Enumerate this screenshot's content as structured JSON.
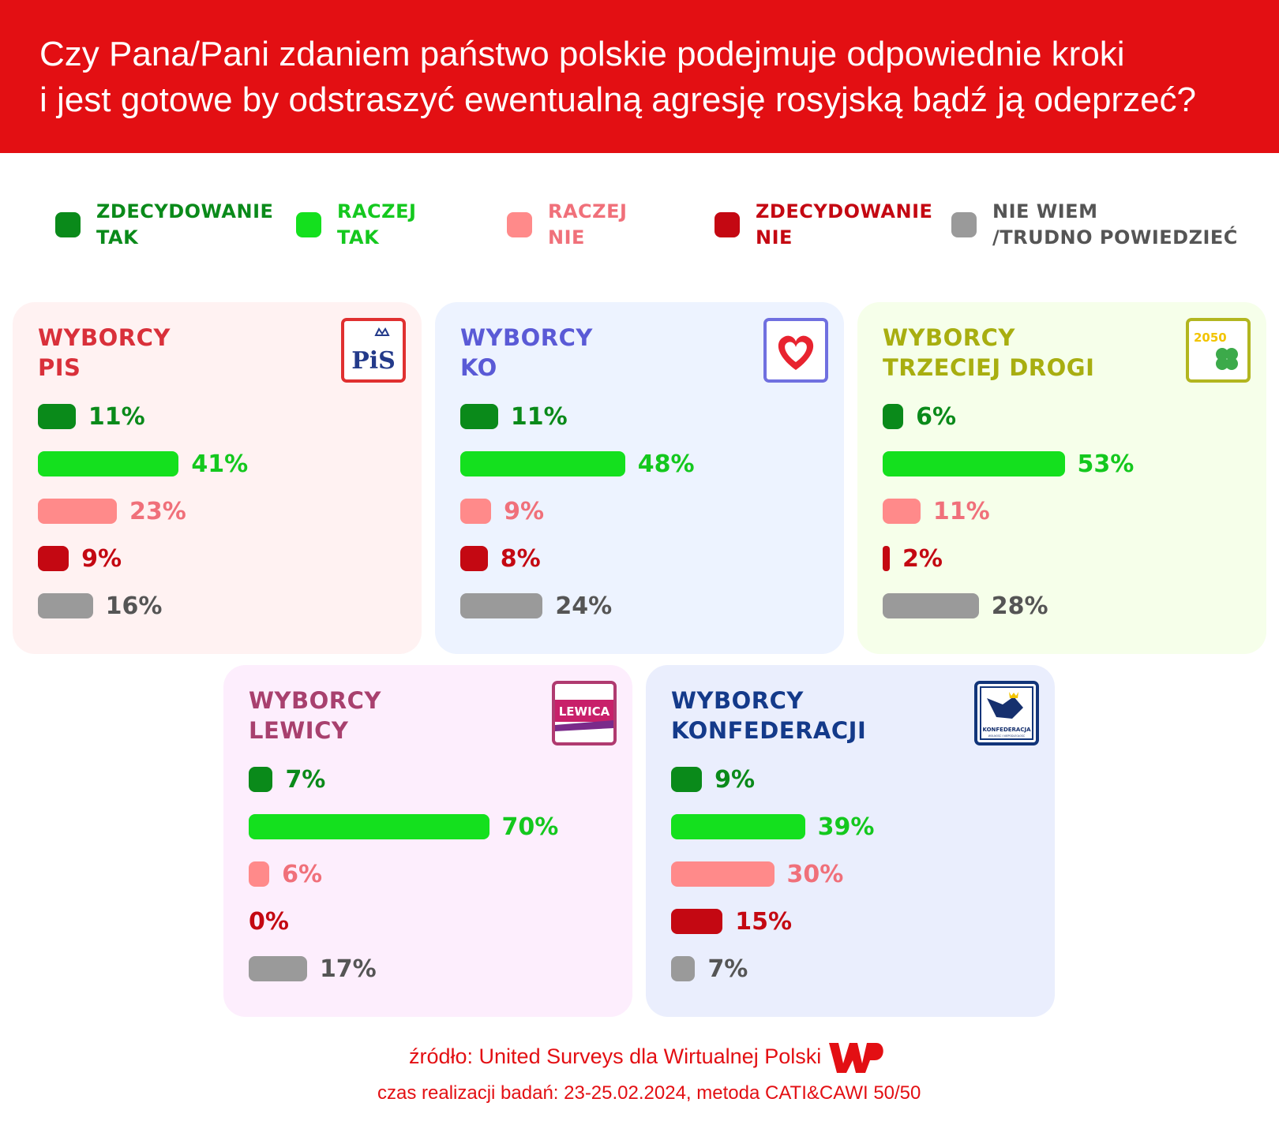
{
  "header": {
    "line1": "Czy Pana/Pani zdaniem państwo polskie podejmuje odpowiednie kroki",
    "line2": "i jest gotowe by odstraszyć ewentualną agresję rosyjską bądź ją odeprzeć?"
  },
  "legend": [
    {
      "line1": "ZDECYDOWANIE",
      "line2": "TAK",
      "color": "#0a8a1a",
      "text_color": "#0a8a1a"
    },
    {
      "line1": "RACZEJ",
      "line2": "TAK",
      "color": "#14e01e",
      "text_color": "#14c81e"
    },
    {
      "line1": "RACZEJ",
      "line2": "NIE",
      "color": "#ff8a8a",
      "text_color": "#f0707a"
    },
    {
      "line1": "ZDECYDOWANIE",
      "line2": "NIE",
      "color": "#c40812",
      "text_color": "#c40812"
    },
    {
      "line1": "NIE WIEM",
      "line2": "/TRUDNO POWIEDZIEĆ",
      "color": "#9a9a9a",
      "text_color": "#555555"
    }
  ],
  "chart_data": [
    {
      "type": "bar",
      "title": "WYBORCY PIS",
      "categories": [
        "ZDECYDOWANIE TAK",
        "RACZEJ TAK",
        "RACZEJ NIE",
        "ZDECYDOWANIE NIE",
        "NIE WIEM /TRUDNO POWIEDZIEĆ"
      ],
      "values": [
        11,
        41,
        23,
        9,
        16
      ],
      "labels": [
        "11%",
        "41%",
        "23%",
        "9%",
        "16%"
      ],
      "unit": "%"
    },
    {
      "type": "bar",
      "title": "WYBORCY KO",
      "categories": [
        "ZDECYDOWANIE TAK",
        "RACZEJ TAK",
        "RACZEJ NIE",
        "ZDECYDOWANIE NIE",
        "NIE WIEM /TRUDNO POWIEDZIEĆ"
      ],
      "values": [
        11,
        48,
        9,
        8,
        24
      ],
      "labels": [
        "11%",
        "48%",
        "9%",
        "8%",
        "24%"
      ],
      "unit": "%"
    },
    {
      "type": "bar",
      "title": "WYBORCY TRZECIEJ DROGI",
      "categories": [
        "ZDECYDOWANIE TAK",
        "RACZEJ TAK",
        "RACZEJ NIE",
        "ZDECYDOWANIE NIE",
        "NIE WIEM /TRUDNO POWIEDZIEĆ"
      ],
      "values": [
        6,
        53,
        11,
        2,
        28
      ],
      "labels": [
        "6%",
        "53%",
        "11%",
        "2%",
        "28%"
      ],
      "unit": "%"
    },
    {
      "type": "bar",
      "title": "WYBORCY LEWICY",
      "categories": [
        "ZDECYDOWANIE TAK",
        "RACZEJ TAK",
        "RACZEJ NIE",
        "ZDECYDOWANIE NIE",
        "NIE WIEM /TRUDNO POWIEDZIEĆ"
      ],
      "values": [
        7,
        70,
        6,
        0,
        17
      ],
      "labels": [
        "7%",
        "70%",
        "6%",
        "0%",
        "17%"
      ],
      "unit": "%"
    },
    {
      "type": "bar",
      "title": "WYBORCY KONFEDERACJI",
      "categories": [
        "ZDECYDOWANIE TAK",
        "RACZEJ TAK",
        "RACZEJ NIE",
        "ZDECYDOWANIE NIE",
        "NIE WIEM /TRUDNO POWIEDZIEĆ"
      ],
      "values": [
        9,
        39,
        30,
        15,
        7
      ],
      "labels": [
        "9%",
        "39%",
        "30%",
        "15%",
        "7%"
      ],
      "unit": "%"
    }
  ],
  "panels": [
    {
      "title1": "WYBORCY",
      "title2": "PIS",
      "title_color": "#d9303a",
      "bg": "#fff2f2",
      "logo": "pis-logo",
      "logo_text": "PiS",
      "logo_border": "#e03030"
    },
    {
      "title1": "WYBORCY",
      "title2": "KO",
      "title_color": "#5a5ad6",
      "bg": "#edf3ff",
      "logo": "ko-heart-logo",
      "logo_border": "#7070e0"
    },
    {
      "title1": "WYBORCY",
      "title2": "TRZECIEJ DROGI",
      "title_color": "#a8ae10",
      "bg": "#f6ffea",
      "logo": "trzecia-droga-logo",
      "logo_text": "2050",
      "logo_border": "#b2b620"
    },
    {
      "title1": "WYBORCY",
      "title2": "LEWICY",
      "title_color": "#a8406e",
      "bg": "#fdeefd",
      "logo": "lewica-logo",
      "logo_text": "LEWICA",
      "logo_border": "#b03a70"
    },
    {
      "title1": "WYBORCY",
      "title2": "KONFEDERACJI",
      "title_color": "#143a8a",
      "bg": "#eaeefd",
      "logo": "konfederacja-logo",
      "logo_text": "KONFEDERACJA",
      "logo_subtext": "WOLNOŚĆ I NIEPODLEGŁOŚĆ",
      "logo_border": "#12357a"
    }
  ],
  "series_colors": [
    "#0a8a1a",
    "#14e01e",
    "#ff8a8a",
    "#c40812",
    "#9a9a9a"
  ],
  "label_colors": [
    "#0a8a1a",
    "#14c81e",
    "#f0707a",
    "#c40812",
    "#555555"
  ],
  "footer": {
    "source": "źródło: United Surveys dla Wirtualnej Polski",
    "method": "czas realizacji badań: 23-25.02.2024, metoda CATI&CAWI 50/50",
    "brand_color": "#e30f13"
  }
}
